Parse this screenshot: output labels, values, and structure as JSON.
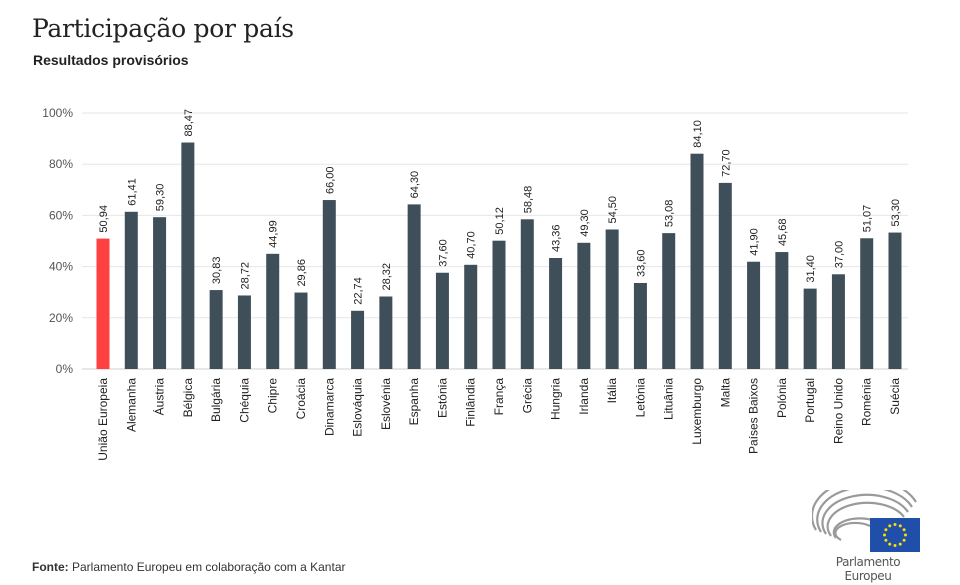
{
  "title": "Participação por país",
  "subtitle": "Resultados provisórios",
  "source": {
    "label": "Fonte:",
    "text": "Parlamento Europeu em colaboração com a Kantar"
  },
  "logo": {
    "text": "Parlamento Europeu"
  },
  "colors": {
    "bar": "#3f4f5a",
    "highlight": "#ff4040",
    "grid": "#e6e6e6",
    "eu_blue": "#1f4fa8",
    "eu_star": "#ffdd00"
  },
  "chart_data": {
    "type": "bar",
    "title": "Participação por país",
    "subtitle": "Resultados provisórios",
    "xlabel": "",
    "ylabel": "",
    "ylim": [
      0,
      100
    ],
    "yticks": [
      "0%",
      "20%",
      "40%",
      "60%",
      "80%",
      "100%"
    ],
    "grid": true,
    "highlight_category": "União Europeia",
    "categories": [
      "União Europeia",
      "Alemanha",
      "Áustria",
      "Bélgica",
      "Bulgária",
      "Chéquia",
      "Chipre",
      "Croácia",
      "Dinamarca",
      "Eslováquia",
      "Eslovénia",
      "Espanha",
      "Estónia",
      "Finlândia",
      "França",
      "Grécia",
      "Hungria",
      "Irlanda",
      "Itália",
      "Letónia",
      "Lituânia",
      "Luxemburgo",
      "Malta",
      "Países Baixos",
      "Polónia",
      "Portugal",
      "Reino Unido",
      "Roménia",
      "Suécia"
    ],
    "values": [
      50.94,
      61.41,
      59.3,
      88.47,
      30.83,
      28.72,
      44.99,
      29.86,
      66.0,
      22.74,
      28.32,
      64.3,
      37.6,
      40.7,
      50.12,
      58.48,
      43.36,
      49.3,
      54.5,
      33.6,
      53.08,
      84.1,
      72.7,
      41.9,
      45.68,
      31.4,
      37.0,
      51.07,
      53.3
    ],
    "labels": [
      "50,94",
      "61,41",
      "59,30",
      "88,47",
      "30,83",
      "28,72",
      "44,99",
      "29,86",
      "66,00",
      "22,74",
      "28,32",
      "64,30",
      "37,60",
      "40,70",
      "50,12",
      "58,48",
      "43,36",
      "49,30",
      "54,50",
      "33,60",
      "53,08",
      "84,10",
      "72,70",
      "41,90",
      "45,68",
      "31,40",
      "37,00",
      "51,07",
      "53,30"
    ]
  }
}
